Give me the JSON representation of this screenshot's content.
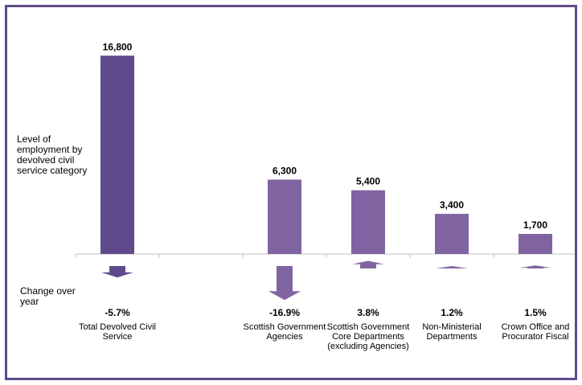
{
  "chart_data": {
    "type": "bar",
    "categories": [
      "Total Devolved Civil Service",
      "",
      "Scottish Government Agencies",
      "Scottish Government Core Departments (excluding Agencies)",
      "Non-Ministerial Departments",
      "Crown Office and Procurator Fiscal"
    ],
    "values": [
      16800,
      null,
      6300,
      5400,
      3400,
      1700
    ],
    "value_labels": [
      "16,800",
      "",
      "6,300",
      "5,400",
      "3,400",
      "1,700"
    ],
    "change_values": [
      -5.7,
      null,
      -16.9,
      3.8,
      1.2,
      1.5
    ],
    "change_labels": [
      "-5.7%",
      "",
      "-16.9%",
      "3.8%",
      "1.2%",
      "1.5%"
    ],
    "ylabel_top": "Level of employment by devolved civil service category",
    "ylabel_bottom": "Change over year",
    "ylim": [
      0,
      17500
    ],
    "colors": {
      "total": "#5f4b8b",
      "bars": "#8064a2",
      "axis": "#c0c0c0"
    }
  }
}
